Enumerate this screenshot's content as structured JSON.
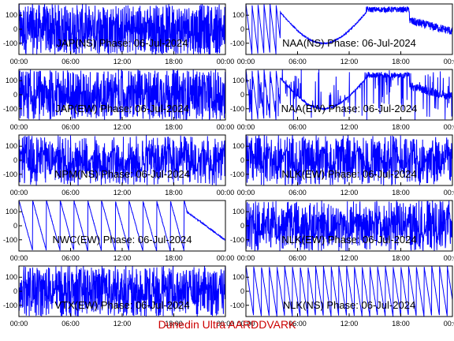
{
  "footer_text": "Dunedin Ultra AARDDVARK",
  "colors": {
    "trace": "#0000ff",
    "axis": "#000000",
    "footer": "#cc0000",
    "background": "#ffffff"
  },
  "chart_data": [
    {
      "type": "line",
      "title": "JAP(NS) Phase: 06-Jul-2024",
      "xticks": [
        "00:00",
        "06:00",
        "12:00",
        "18:00",
        "00:00"
      ],
      "yticks": [
        100,
        0,
        -100
      ],
      "ylim": [
        -180,
        180
      ],
      "xlim": [
        0,
        24
      ],
      "pattern": "noise-dense",
      "density": 0.9
    },
    {
      "type": "line",
      "title": "NAA(NS) Phase: 06-Jul-2024",
      "xticks": [
        "00:00",
        "06:00",
        "12:00",
        "18:00",
        "00:00"
      ],
      "yticks": [
        100,
        0,
        -100
      ],
      "ylim": [
        -180,
        180
      ],
      "xlim": [
        0,
        24
      ],
      "pattern": "bowl-wraps",
      "density": 0.3
    },
    {
      "type": "line",
      "title": "JAP(EW) Phase: 06-Jul-2024",
      "xticks": [
        "00:00",
        "06:00",
        "12:00",
        "18:00",
        "00:00"
      ],
      "yticks": [
        100,
        0,
        -100
      ],
      "ylim": [
        -180,
        180
      ],
      "xlim": [
        0,
        24
      ],
      "pattern": "noise-dense",
      "density": 0.85
    },
    {
      "type": "line",
      "title": "NAA(EW) Phase: 06-Jul-2024",
      "xticks": [
        "00:00",
        "06:00",
        "12:00",
        "18:00",
        "00:00"
      ],
      "yticks": [
        100,
        0,
        -100
      ],
      "ylim": [
        -180,
        180
      ],
      "xlim": [
        0,
        24
      ],
      "pattern": "bowl-dense",
      "density": 0.5
    },
    {
      "type": "line",
      "title": "NPM(NS) Phase: 06-Jul-2024",
      "xticks": [
        "00:00",
        "06:00",
        "12:00",
        "18:00",
        "00:00"
      ],
      "yticks": [
        100,
        0,
        -100
      ],
      "ylim": [
        -180,
        180
      ],
      "xlim": [
        0,
        24
      ],
      "pattern": "noise",
      "density": 0.6
    },
    {
      "type": "line",
      "title": "NLK(EW) Phase: 06-Jul-2024",
      "xticks": [
        "00:00",
        "06:00",
        "12:00",
        "18:00",
        "00:00"
      ],
      "yticks": [
        100,
        0,
        -100
      ],
      "ylim": [
        -180,
        180
      ],
      "xlim": [
        0,
        24
      ],
      "pattern": "noise",
      "density": 0.6
    },
    {
      "type": "line",
      "title": "NWC(EW) Phase: 06-Jul-2024",
      "xticks": [
        "00:00",
        "06:00",
        "12:00",
        "18:00",
        "00:00"
      ],
      "yticks": [
        100,
        0,
        -100
      ],
      "ylim": [
        -180,
        180
      ],
      "xlim": [
        0,
        24
      ],
      "pattern": "sawtooth",
      "density": 0.1
    },
    {
      "type": "line",
      "title": "NLK(EW) Phase: 06-Jul-2024",
      "xticks": [
        "00:00",
        "06:00",
        "12:00",
        "18:00",
        "00:00"
      ],
      "yticks": [
        100,
        0,
        -100
      ],
      "ylim": [
        -180,
        180
      ],
      "xlim": [
        0,
        24
      ],
      "pattern": "noise",
      "density": 0.65
    },
    {
      "type": "line",
      "title": "VTX(EW) Phase: 06-Jul-2024",
      "xticks": [
        "00:00",
        "06:00",
        "12:00",
        "18:00",
        "00:00"
      ],
      "yticks": [
        100,
        0,
        -100
      ],
      "ylim": [
        -180,
        180
      ],
      "xlim": [
        0,
        24
      ],
      "pattern": "noise-dense",
      "density": 0.8
    },
    {
      "type": "line",
      "title": "NLK(NS) Phase: 06-Jul-2024",
      "xticks": [
        "00:00",
        "06:00",
        "12:00",
        "18:00",
        "00:00"
      ],
      "yticks": [
        100,
        0,
        -100
      ],
      "ylim": [
        -180,
        180
      ],
      "xlim": [
        0,
        24
      ],
      "pattern": "sawtooth-fast",
      "density": 0.2
    }
  ]
}
